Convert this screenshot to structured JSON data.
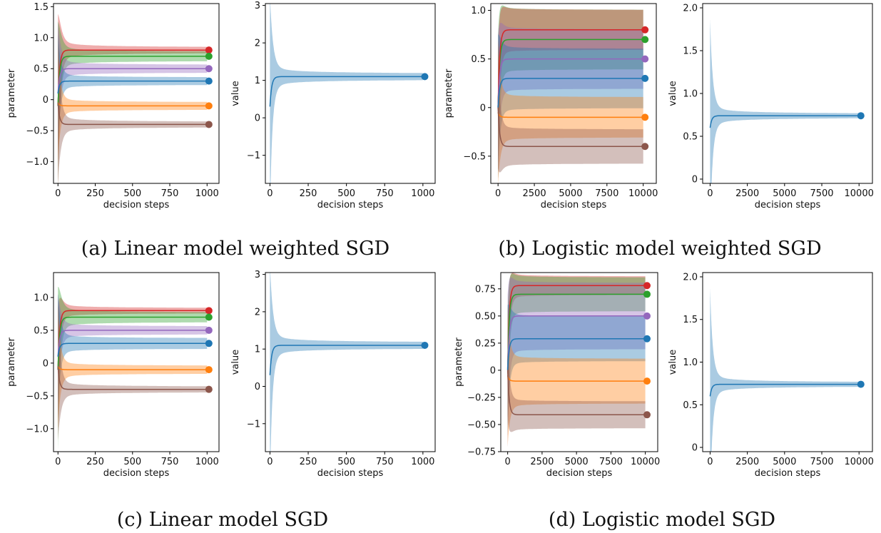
{
  "colors": {
    "blue": "#1f77b4",
    "orange": "#ff7f0e",
    "green": "#2ca02c",
    "red": "#d62728",
    "purple": "#9467bd",
    "brown": "#8c564b"
  },
  "chart_data": [
    {
      "type": "area",
      "panel": "a-left",
      "caption": "(a) Linear model weighted SGD",
      "xlabel": "decision steps",
      "ylabel": "parameter",
      "xlim": [
        -30,
        1080
      ],
      "ylim": [
        -1.35,
        1.55
      ],
      "xticks": [
        0,
        250,
        500,
        750,
        1000
      ],
      "yticks": [
        1.5,
        1.0,
        0.5,
        0.0,
        -0.5,
        -1.0
      ],
      "series": [
        {
          "color": "red",
          "final": 0.8,
          "start": -0.1,
          "spike": 1.45,
          "band": 0.03
        },
        {
          "color": "green",
          "final": 0.7,
          "start": -0.1,
          "spike": 1.3,
          "band": 0.06
        },
        {
          "color": "purple",
          "final": 0.5,
          "start": 0.1,
          "spike": 1.1,
          "band": 0.05
        },
        {
          "color": "blue",
          "final": 0.3,
          "start": 0.1,
          "spike": 0.9,
          "band": 0.05
        },
        {
          "color": "orange",
          "final": -0.1,
          "start": -0.05,
          "spike": 0.9,
          "band": 0.05
        },
        {
          "color": "brown",
          "final": -0.4,
          "start": -0.05,
          "spike": 1.25,
          "band": 0.03
        }
      ]
    },
    {
      "type": "area",
      "panel": "a-right",
      "xlabel": "decision steps",
      "ylabel": "value",
      "xlim": [
        -30,
        1080
      ],
      "ylim": [
        -1.75,
        3.05
      ],
      "xticks": [
        0,
        250,
        500,
        750,
        1000
      ],
      "yticks": [
        3,
        2,
        1,
        0,
        -1
      ],
      "series": [
        {
          "color": "blue",
          "final": 1.1,
          "start": 0.3,
          "spike": 2.9,
          "band": 0.05
        }
      ]
    },
    {
      "type": "area",
      "panel": "b-left",
      "caption": "(b) Logistic model weighted SGD",
      "xlabel": "decision steps",
      "ylabel": "parameter",
      "xlim": [
        -500,
        10900
      ],
      "ylim": [
        -0.78,
        1.07
      ],
      "xticks": [
        0,
        2500,
        5000,
        7500,
        10000
      ],
      "yticks": [
        1.0,
        0.5,
        0.0,
        -0.5
      ],
      "series": [
        {
          "color": "green",
          "final": 0.7,
          "start": 0.0,
          "spike": 0.45,
          "band": 0.3
        },
        {
          "color": "red",
          "final": 0.8,
          "start": 0.0,
          "spike": 0.4,
          "band": 0.2
        },
        {
          "color": "purple",
          "final": 0.5,
          "start": 0.0,
          "spike": 0.45,
          "band": 0.3
        },
        {
          "color": "blue",
          "final": 0.3,
          "start": 0.0,
          "spike": 0.45,
          "band": 0.3
        },
        {
          "color": "orange",
          "final": -0.1,
          "start": -0.05,
          "spike": 0.55,
          "band": 0.2
        },
        {
          "color": "brown",
          "final": -0.4,
          "start": 0.0,
          "spike": 0.45,
          "band": 0.17
        }
      ]
    },
    {
      "type": "area",
      "panel": "b-right",
      "xlabel": "decision steps",
      "ylabel": "value",
      "xlim": [
        -500,
        10900
      ],
      "ylim": [
        -0.05,
        2.05
      ],
      "xticks": [
        0,
        2500,
        5000,
        7500,
        10000
      ],
      "yticks": [
        2.0,
        1.5,
        1.0,
        0.5,
        0.0
      ],
      "series": [
        {
          "color": "blue",
          "final": 0.74,
          "start": 0.6,
          "spike": 1.25,
          "band": 0.01
        }
      ]
    },
    {
      "type": "area",
      "panel": "c-left",
      "caption": "(c) Linear model SGD",
      "xlabel": "decision steps",
      "ylabel": "parameter",
      "xlim": [
        -30,
        1080
      ],
      "ylim": [
        -1.35,
        1.38
      ],
      "xticks": [
        0,
        250,
        500,
        750,
        1000
      ],
      "yticks": [
        1.0,
        0.5,
        0.0,
        -0.5,
        -1.0
      ],
      "series": [
        {
          "color": "red",
          "final": 0.8,
          "start": -0.1,
          "spike": 0.9,
          "band": 0.03
        },
        {
          "color": "green",
          "final": 0.7,
          "start": -0.1,
          "spike": 1.2,
          "band": 0.06
        },
        {
          "color": "purple",
          "final": 0.5,
          "start": 0.1,
          "spike": 0.9,
          "band": 0.05
        },
        {
          "color": "blue",
          "final": 0.3,
          "start": 0.1,
          "spike": 0.9,
          "band": 0.07
        },
        {
          "color": "orange",
          "final": -0.1,
          "start": -0.05,
          "spike": 0.9,
          "band": 0.05
        },
        {
          "color": "brown",
          "final": -0.4,
          "start": -0.05,
          "spike": 1.1,
          "band": 0.03
        }
      ]
    },
    {
      "type": "area",
      "panel": "c-right",
      "xlabel": "decision steps",
      "ylabel": "value",
      "xlim": [
        -30,
        1080
      ],
      "ylim": [
        -1.75,
        3.05
      ],
      "xticks": [
        0,
        250,
        500,
        750,
        1000
      ],
      "yticks": [
        3,
        2,
        1,
        0,
        -1
      ],
      "series": [
        {
          "color": "blue",
          "final": 1.1,
          "start": 0.3,
          "spike": 2.9,
          "band": 0.05
        }
      ]
    },
    {
      "type": "area",
      "panel": "d-left",
      "caption": "(d) Logistic model SGD",
      "xlabel": "decision steps",
      "ylabel": "parameter",
      "xlim": [
        -500,
        10900
      ],
      "ylim": [
        -0.75,
        0.9
      ],
      "xticks": [
        0,
        2500,
        5000,
        7500,
        10000
      ],
      "yticks": [
        0.75,
        0.5,
        0.25,
        0.0,
        -0.25,
        -0.5,
        -0.75
      ],
      "series": [
        {
          "color": "red",
          "final": 0.78,
          "start": 0.0,
          "spike": 0.4,
          "band": 0.08
        },
        {
          "color": "green",
          "final": 0.7,
          "start": 0.0,
          "spike": 0.4,
          "band": 0.15
        },
        {
          "color": "purple",
          "final": 0.5,
          "start": 0.0,
          "spike": 0.4,
          "band": 0.3
        },
        {
          "color": "blue",
          "final": 0.29,
          "start": 0.0,
          "spike": 0.4,
          "band": 0.2
        },
        {
          "color": "orange",
          "final": -0.1,
          "start": -0.05,
          "spike": 0.45,
          "band": 0.2
        },
        {
          "color": "brown",
          "final": -0.41,
          "start": 0.0,
          "spike": 0.3,
          "band": 0.12
        }
      ]
    },
    {
      "type": "area",
      "panel": "d-right",
      "xlabel": "decision steps",
      "ylabel": "value",
      "xlim": [
        -500,
        10900
      ],
      "ylim": [
        -0.05,
        2.05
      ],
      "xticks": [
        0,
        2500,
        5000,
        7500,
        10000
      ],
      "yticks": [
        2.0,
        1.5,
        1.0,
        0.5,
        0.0
      ],
      "series": [
        {
          "color": "blue",
          "final": 0.74,
          "start": 0.6,
          "spike": 1.25,
          "band": 0.01
        }
      ]
    }
  ]
}
